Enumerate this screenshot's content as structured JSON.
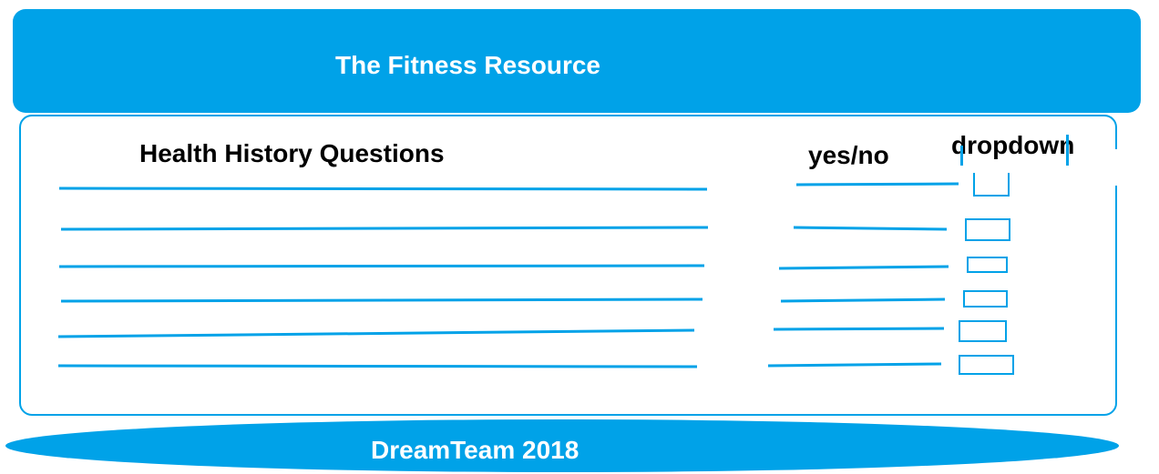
{
  "header": {
    "title": "The Fitness Resource"
  },
  "form": {
    "questions_heading": "Health History Questions",
    "yesno_heading": "yes/no",
    "dropdown_heading": "dropdown",
    "row_count": 6
  },
  "footer": {
    "text": "DreamTeam 2018"
  },
  "colors": {
    "accent": "#00a2e8",
    "heading_text": "#000000",
    "banner_text": "#ffffff",
    "background": "#ffffff"
  }
}
